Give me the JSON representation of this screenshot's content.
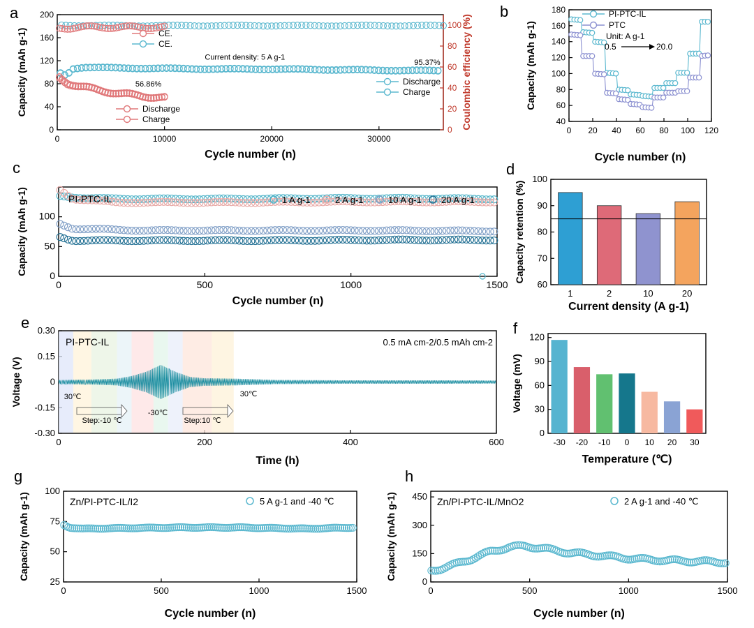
{
  "figure": {
    "panels": [
      {
        "key": "a",
        "letter": "a"
      },
      {
        "key": "b",
        "letter": "b"
      },
      {
        "key": "c",
        "letter": "c"
      },
      {
        "key": "d",
        "letter": "d"
      },
      {
        "key": "e",
        "letter": "e"
      },
      {
        "key": "f",
        "letter": "f"
      },
      {
        "key": "g",
        "letter": "g"
      },
      {
        "key": "h",
        "letter": "h"
      }
    ]
  },
  "chart_data": [
    {
      "key": "a",
      "type": "scatter",
      "xlabel": "Cycle number (n)",
      "ylabel": "Capacity (mAh g-1)",
      "y2label": "Coulombic efficiency (%)",
      "xlim": [
        0,
        36000
      ],
      "ylim": [
        0,
        200
      ],
      "y2lim": [
        0,
        110
      ],
      "xticks": [
        0,
        10000,
        20000,
        30000
      ],
      "yticks": [
        0,
        40,
        80,
        120,
        160,
        200
      ],
      "y2ticks": [
        0,
        20,
        40,
        60,
        80,
        100
      ],
      "annotations": [
        {
          "text": "Current density: 5 A g-1",
          "x": 17500,
          "y": 122
        },
        {
          "text": "95.37%",
          "x": 34500,
          "y": 113
        },
        {
          "text": "56.86%",
          "x": 8500,
          "y": 75
        }
      ],
      "series": [
        {
          "name": "CE.",
          "axis": "right",
          "color": "#5bb8cf",
          "points": [
            [
              400,
              100
            ],
            [
              3000,
              99.5
            ],
            [
              10000,
              99.5
            ],
            [
              20000,
              99.5
            ],
            [
              30000,
              99.5
            ],
            [
              36000,
              99.5
            ]
          ]
        },
        {
          "name": "Discharge",
          "axis": "left",
          "color": "#5bb8cf",
          "points": [
            [
              300,
              98
            ],
            [
              800,
              94
            ],
            [
              1500,
              106
            ],
            [
              2500,
              108
            ],
            [
              5000,
              107
            ],
            [
              10000,
              106
            ],
            [
              15000,
              105
            ],
            [
              20000,
              105
            ],
            [
              25000,
              104
            ],
            [
              30000,
              103
            ],
            [
              35500,
              102
            ]
          ]
        },
        {
          "name": "Charge",
          "axis": "left",
          "color": "#5bb8cf",
          "points": [
            [
              300,
              99
            ],
            [
              800,
              95
            ],
            [
              1500,
              107
            ],
            [
              2500,
              109
            ],
            [
              5000,
              108
            ],
            [
              10000,
              107
            ],
            [
              15000,
              106
            ],
            [
              20000,
              106
            ],
            [
              25000,
              105
            ],
            [
              30000,
              104
            ],
            [
              35500,
              103
            ]
          ]
        },
        {
          "name": "CE.",
          "axis": "right",
          "color": "#e0787a",
          "points": [
            [
              200,
              97
            ],
            [
              2000,
              98
            ],
            [
              4000,
              98
            ],
            [
              6000,
              98
            ],
            [
              8000,
              98
            ],
            [
              10000,
              98
            ]
          ]
        },
        {
          "name": "Discharge",
          "axis": "left",
          "color": "#e0787a",
          "points": [
            [
              200,
              90
            ],
            [
              1000,
              80
            ],
            [
              2000,
              75
            ],
            [
              4000,
              68
            ],
            [
              6000,
              62
            ],
            [
              8000,
              58
            ],
            [
              10000,
              55
            ]
          ]
        },
        {
          "name": "Charge",
          "axis": "left",
          "color": "#e0787a",
          "points": [
            [
              200,
              92
            ],
            [
              1000,
              82
            ],
            [
              2000,
              76
            ],
            [
              4000,
              69
            ],
            [
              6000,
              63
            ],
            [
              8000,
              59
            ],
            [
              10000,
              56
            ]
          ]
        }
      ]
    },
    {
      "key": "b",
      "type": "line",
      "xlabel": "Cycle number (n)",
      "ylabel": "Capacity (mAh g-1)",
      "xlim": [
        0,
        120
      ],
      "ylim": [
        40,
        180
      ],
      "xticks": [
        0,
        20,
        40,
        60,
        80,
        100,
        120
      ],
      "yticks": [
        40,
        60,
        80,
        100,
        120,
        140,
        160,
        180
      ],
      "unit_label": "Unit: A g-1",
      "rate_start": "0.5",
      "rate_end": "20.0",
      "series": [
        {
          "name": "PI-PTC-IL",
          "color": "#5bb8cf",
          "points": [
            [
              2,
              168
            ],
            [
              10,
              167
            ],
            [
              11,
              152
            ],
            [
              20,
              151
            ],
            [
              21,
              140
            ],
            [
              30,
              139
            ],
            [
              31,
              101
            ],
            [
              40,
              100
            ],
            [
              41,
              80
            ],
            [
              50,
              79
            ],
            [
              51,
              74
            ],
            [
              60,
              73
            ],
            [
              61,
              72
            ],
            [
              70,
              71
            ],
            [
              71,
              82
            ],
            [
              80,
              82
            ],
            [
              81,
              88
            ],
            [
              90,
              88
            ],
            [
              91,
              101
            ],
            [
              100,
              101
            ],
            [
              101,
              125
            ],
            [
              110,
              125
            ],
            [
              111,
              165
            ],
            [
              119,
              165
            ]
          ]
        },
        {
          "name": "PTC",
          "color": "#8a8fd0",
          "points": [
            [
              2,
              149
            ],
            [
              10,
              148
            ],
            [
              11,
              122
            ],
            [
              20,
              122
            ],
            [
              21,
              100
            ],
            [
              30,
              99
            ],
            [
              31,
              76
            ],
            [
              40,
              75
            ],
            [
              41,
              68
            ],
            [
              50,
              67
            ],
            [
              51,
              62
            ],
            [
              60,
              61
            ],
            [
              61,
              58
            ],
            [
              70,
              57
            ],
            [
              71,
              70
            ],
            [
              80,
              70
            ],
            [
              81,
              76
            ],
            [
              90,
              76
            ],
            [
              91,
              78
            ],
            [
              100,
              78
            ],
            [
              101,
              95
            ],
            [
              110,
              95
            ],
            [
              111,
              122
            ],
            [
              119,
              123
            ]
          ]
        }
      ]
    },
    {
      "key": "c",
      "type": "scatter",
      "xlabel": "Cycle number (n)",
      "ylabel": "Capacity (mAh g-1)",
      "xlim": [
        0,
        1500
      ],
      "ylim": [
        0,
        150
      ],
      "xticks": [
        0,
        500,
        1000,
        1500
      ],
      "yticks": [
        0,
        50,
        100
      ],
      "inner_title": "PI-PTC-IL",
      "series": [
        {
          "name": "1 A g-1",
          "color": "#4fb3c8",
          "points": [
            [
              5,
              135
            ],
            [
              100,
              131
            ],
            [
              300,
              130
            ],
            [
              600,
              130
            ],
            [
              900,
              131
            ],
            [
              1200,
              131
            ],
            [
              1490,
              130
            ]
          ]
        },
        {
          "name": "2 A g-1",
          "color": "#e8a9a6",
          "points": [
            [
              5,
              145
            ],
            [
              50,
              130
            ],
            [
              200,
              124
            ],
            [
              600,
              124
            ],
            [
              1000,
              125
            ],
            [
              1300,
              125
            ],
            [
              1490,
              125
            ]
          ]
        },
        {
          "name": "10 A g-1",
          "color": "#7f9ec6",
          "points": [
            [
              5,
              88
            ],
            [
              50,
              80
            ],
            [
              300,
              77
            ],
            [
              700,
              77
            ],
            [
              1100,
              77
            ],
            [
              1490,
              76
            ]
          ]
        },
        {
          "name": "20 A g-1",
          "color": "#1f6e92",
          "points": [
            [
              5,
              66
            ],
            [
              50,
              60
            ],
            [
              300,
              60
            ],
            [
              700,
              60
            ],
            [
              1100,
              61
            ],
            [
              1490,
              61
            ]
          ]
        }
      ]
    },
    {
      "key": "d",
      "type": "bar",
      "xlabel": "Current density (A g-1)",
      "ylabel": "Capacity retention (%)",
      "categories": [
        "1",
        "2",
        "10",
        "20"
      ],
      "values": [
        95,
        90,
        87,
        91.5
      ],
      "colors": [
        "#2e9fd3",
        "#de6a78",
        "#8f93cf",
        "#f4a45e"
      ],
      "ylim": [
        60,
        100
      ],
      "yticks": [
        60,
        70,
        80,
        90,
        100
      ],
      "reference_line": 85
    },
    {
      "key": "e",
      "type": "line",
      "xlabel": "Time  (h)",
      "ylabel": "Voltage (V)",
      "xlim": [
        0,
        600
      ],
      "ylim": [
        -0.3,
        0.3
      ],
      "xticks": [
        0,
        200,
        400,
        600
      ],
      "yticks": [
        -0.3,
        -0.15,
        0,
        0.15,
        0.3
      ],
      "inner_title": "PI-PTC-IL",
      "condition": "0.5 mA cm-2/0.5 mAh cm-2",
      "temp_labels": [
        "30℃",
        "-30℃",
        "30℃"
      ],
      "step_labels": [
        "Step:-10 ℃",
        "Step:10 ℃"
      ],
      "series": [
        {
          "name": "voltage",
          "color": "#1a8da0",
          "envelope": [
            [
              0,
              0.012
            ],
            [
              50,
              0.015
            ],
            [
              80,
              0.02
            ],
            [
              100,
              0.035
            ],
            [
              120,
              0.06
            ],
            [
              140,
              0.1
            ],
            [
              160,
              0.06
            ],
            [
              180,
              0.03
            ],
            [
              200,
              0.022
            ],
            [
              240,
              0.02
            ],
            [
              300,
              0.012
            ],
            [
              400,
              0.01
            ],
            [
              500,
              0.01
            ],
            [
              600,
              0.009
            ]
          ]
        }
      ]
    },
    {
      "key": "f",
      "type": "bar",
      "xlabel": "Temperature (℃)",
      "ylabel": "Voltage (mV)",
      "categories": [
        "-30",
        "-20",
        "-10",
        "0",
        "10",
        "20",
        "30"
      ],
      "values": [
        117,
        83,
        74,
        75,
        52,
        40,
        30
      ],
      "colors": [
        "#56b4d0",
        "#d95f6b",
        "#61c070",
        "#15778c",
        "#f7b9a1",
        "#8aa3d4",
        "#f05a5b"
      ],
      "ylim": [
        0,
        125
      ],
      "yticks": [
        0,
        30,
        60,
        90,
        120
      ]
    },
    {
      "key": "g",
      "type": "scatter",
      "xlabel": "Cycle number (n)",
      "ylabel": "Capacity (mAh g-1)",
      "xlim": [
        0,
        1500
      ],
      "ylim": [
        25,
        100
      ],
      "xticks": [
        0,
        500,
        1000,
        1500
      ],
      "yticks": [
        25,
        50,
        75,
        100
      ],
      "inner_title": "Zn/PI-PTC-IL/I2",
      "series": [
        {
          "name": "5 A g-1 and -40 ℃",
          "color": "#5bb8cf",
          "points": [
            [
              3,
              72
            ],
            [
              30,
              70
            ],
            [
              100,
              69
            ],
            [
              300,
              69.5
            ],
            [
              600,
              70
            ],
            [
              900,
              70
            ],
            [
              1250,
              69
            ],
            [
              1480,
              70
            ]
          ]
        }
      ]
    },
    {
      "key": "h",
      "type": "scatter",
      "xlabel": "Cycle number (n)",
      "ylabel": "Capacity (mAh g-1)",
      "xlim": [
        0,
        1500
      ],
      "ylim": [
        0,
        480
      ],
      "xticks": [
        0,
        500,
        1000,
        1500
      ],
      "yticks": [
        0,
        150,
        300,
        450
      ],
      "inner_title": "Zn/PI-PTC-IL/MnO2",
      "series": [
        {
          "name": "2 A g-1 and -40 ℃",
          "color": "#5bb8cf",
          "points": [
            [
              3,
              60
            ],
            [
              50,
              70
            ],
            [
              100,
              85
            ],
            [
              200,
              120
            ],
            [
              300,
              160
            ],
            [
              400,
              185
            ],
            [
              480,
              190
            ],
            [
              550,
              180
            ],
            [
              700,
              155
            ],
            [
              850,
              140
            ],
            [
              1000,
              125
            ],
            [
              1100,
              118
            ],
            [
              1250,
              112
            ],
            [
              1490,
              105
            ]
          ]
        }
      ]
    }
  ]
}
